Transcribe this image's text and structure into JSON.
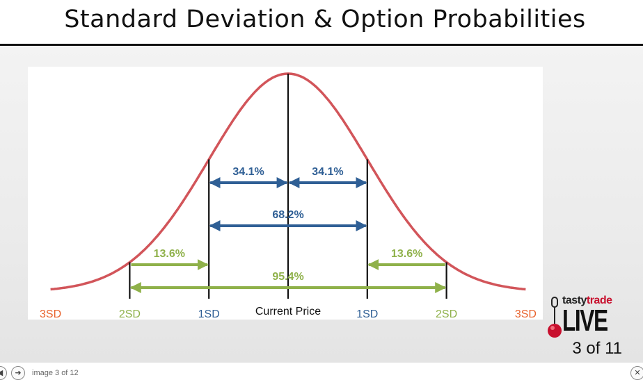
{
  "slide": {
    "title": "Standard Deviation & Option Probabilities",
    "counter": "3 of 11"
  },
  "viewer": {
    "caption": "image 3 of 12",
    "prev_icon": "◀",
    "next_icon": "➜",
    "close_icon": "✕"
  },
  "brand": {
    "name_part1": "tasty",
    "name_part2": "trade",
    "live": "LIVE"
  },
  "colors": {
    "curve": "#d2555a",
    "one_sd": "#2f5f95",
    "two_sd": "#8fb14a",
    "three_sd": "#e8622c",
    "axis": "#111111"
  },
  "chart_data": {
    "type": "area",
    "distribution": "normal",
    "title": "",
    "x_range": [
      -3.0,
      3.0
    ],
    "tick_labels": [
      {
        "x": -3,
        "label": "3SD",
        "color": "three_sd"
      },
      {
        "x": -2,
        "label": "2SD",
        "color": "two_sd"
      },
      {
        "x": -1,
        "label": "1SD",
        "color": "one_sd"
      },
      {
        "x": 0,
        "label": "Current Price",
        "color": "axis"
      },
      {
        "x": 1,
        "label": "1SD",
        "color": "one_sd"
      },
      {
        "x": 2,
        "label": "2SD",
        "color": "two_sd"
      },
      {
        "x": 3,
        "label": "3SD",
        "color": "three_sd"
      }
    ],
    "vertical_lines": [
      -2,
      -1,
      0,
      1,
      2
    ],
    "ranges": [
      {
        "from": -1,
        "to": 0,
        "label": "34.1%",
        "level": 0,
        "color": "one_sd",
        "arrows": "both"
      },
      {
        "from": 0,
        "to": 1,
        "label": "34.1%",
        "level": 0,
        "color": "one_sd",
        "arrows": "both"
      },
      {
        "from": -1,
        "to": 1,
        "label": "68.2%",
        "level": 1,
        "color": "one_sd",
        "arrows": "both"
      },
      {
        "from": -2,
        "to": -1,
        "label": "13.6%",
        "level": 2,
        "color": "two_sd",
        "arrows": "right"
      },
      {
        "from": 1,
        "to": 2,
        "label": "13.6%",
        "level": 2,
        "color": "two_sd",
        "arrows": "left"
      },
      {
        "from": -2,
        "to": 2,
        "label": "95.4%",
        "level": 3,
        "color": "two_sd",
        "arrows": "both"
      }
    ]
  }
}
